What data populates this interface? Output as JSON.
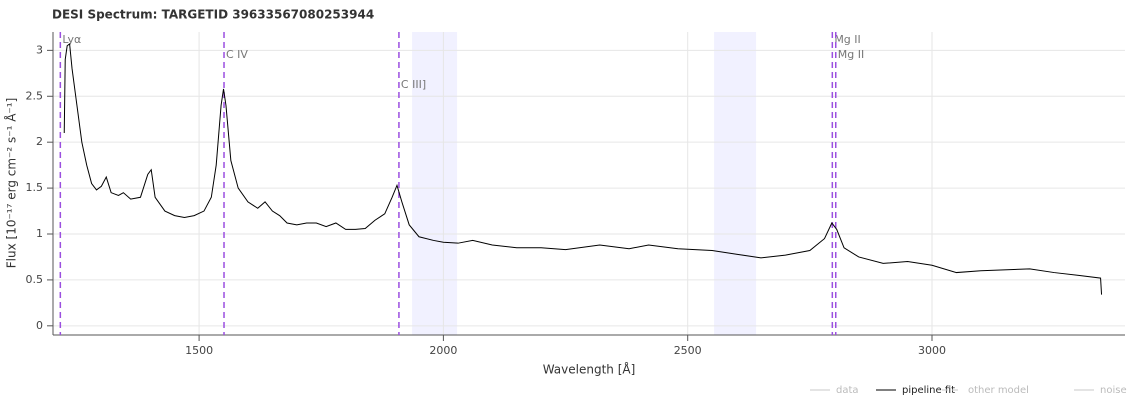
{
  "chart_data": {
    "type": "line",
    "title": "DESI Spectrum: TARGETID 39633567080253944",
    "x_label": "Wavelength [Å]",
    "y_label": "Flux [10⁻¹⁷ erg cm⁻² s⁻¹ Å⁻¹]",
    "x": [
      1224,
      1226,
      1230,
      1235,
      1240,
      1250,
      1260,
      1270,
      1280,
      1290,
      1300,
      1310,
      1320,
      1335,
      1345,
      1360,
      1380,
      1395,
      1402,
      1410,
      1430,
      1450,
      1470,
      1490,
      1510,
      1525,
      1535,
      1545,
      1550,
      1555,
      1565,
      1580,
      1600,
      1620,
      1635,
      1650,
      1665,
      1680,
      1700,
      1720,
      1740,
      1760,
      1780,
      1800,
      1820,
      1840,
      1860,
      1880,
      1895,
      1905,
      1915,
      1930,
      1950,
      1980,
      2000,
      2030,
      2060,
      2100,
      2150,
      2200,
      2250,
      2320,
      2380,
      2420,
      2480,
      2550,
      2600,
      2650,
      2700,
      2750,
      2780,
      2795,
      2805,
      2820,
      2850,
      2900,
      2950,
      3000,
      3050,
      3100,
      3200,
      3250,
      3300,
      3345,
      3347
    ],
    "series": [
      {
        "name": "pipeline fit",
        "color": "#000000",
        "values": [
          2.1,
          2.9,
          3.05,
          3.07,
          2.8,
          2.4,
          2.0,
          1.75,
          1.55,
          1.48,
          1.52,
          1.62,
          1.45,
          1.42,
          1.45,
          1.38,
          1.4,
          1.65,
          1.7,
          1.4,
          1.25,
          1.2,
          1.18,
          1.2,
          1.25,
          1.4,
          1.75,
          2.4,
          2.58,
          2.4,
          1.8,
          1.5,
          1.35,
          1.28,
          1.35,
          1.25,
          1.2,
          1.12,
          1.1,
          1.12,
          1.12,
          1.08,
          1.12,
          1.05,
          1.05,
          1.06,
          1.15,
          1.22,
          1.4,
          1.53,
          1.35,
          1.1,
          0.97,
          0.93,
          0.91,
          0.9,
          0.93,
          0.88,
          0.85,
          0.85,
          0.83,
          0.88,
          0.84,
          0.88,
          0.84,
          0.82,
          0.78,
          0.74,
          0.77,
          0.82,
          0.95,
          1.12,
          1.05,
          0.85,
          0.75,
          0.68,
          0.7,
          0.66,
          0.58,
          0.6,
          0.62,
          0.58,
          0.55,
          0.52,
          0.34
        ]
      }
    ],
    "xlim": [
      1201,
      3395
    ],
    "ylim": [
      -0.1,
      3.2
    ],
    "xticks": [
      1500,
      2000,
      2500,
      3000
    ],
    "yticks": [
      0,
      0.5,
      1,
      1.5,
      2,
      2.5,
      3
    ],
    "grid": true,
    "bands": [
      [
        1936,
        2028
      ],
      [
        2554,
        2640
      ]
    ],
    "band_color": "#f1f1ff",
    "line_color": "#9b4fe0",
    "lines": [
      {
        "x": 1216,
        "label": "Lyα"
      },
      {
        "x": 1551,
        "label": "C IV"
      },
      {
        "x": 1909,
        "label": "C III]"
      },
      {
        "x": 2796,
        "label": "Mg II"
      },
      {
        "x": 2803,
        "label": "Mg II"
      }
    ],
    "legend": {
      "location": "bottom-right",
      "muted_color": "#c8c8c8",
      "muted_entries": [
        {
          "name": "data",
          "dash": false
        },
        {
          "name": "other model",
          "dash": true
        },
        {
          "name": "noise",
          "dash": false
        }
      ]
    }
  }
}
